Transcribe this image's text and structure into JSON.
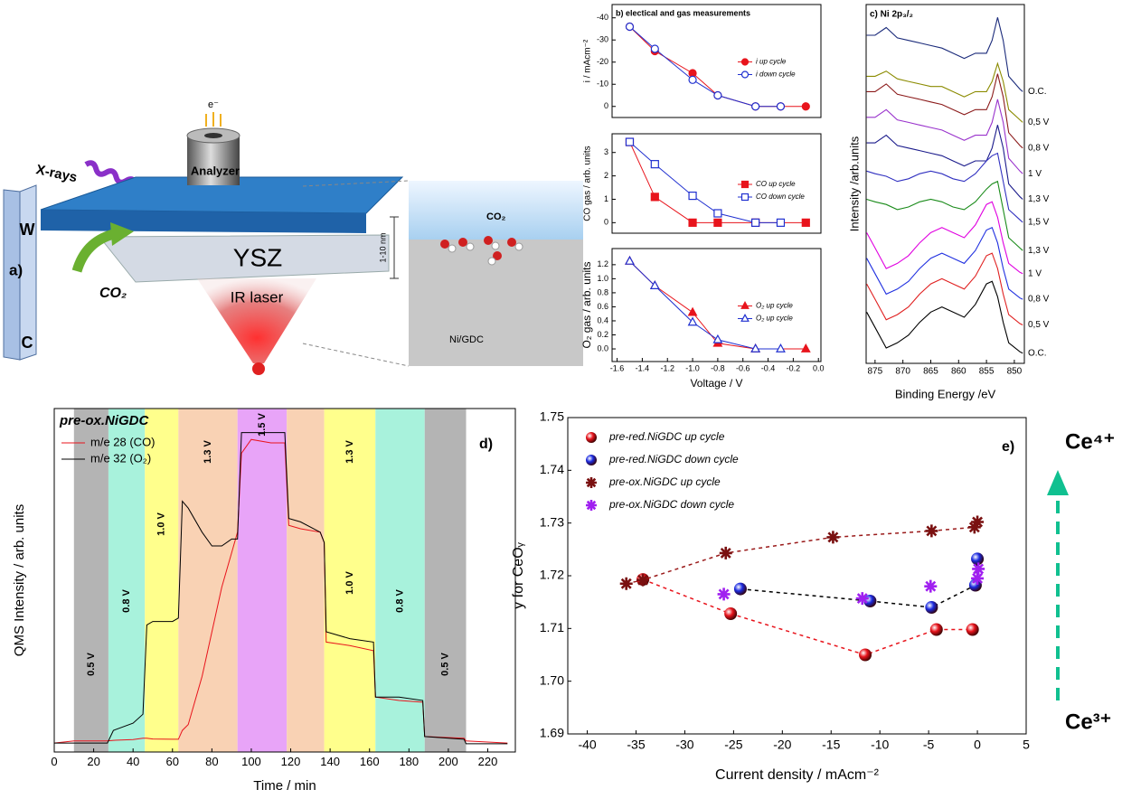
{
  "schematic": {
    "label": "a)",
    "xray": "X-rays",
    "electron": "e⁻",
    "analyzer": "Analyzer",
    "w": "W",
    "c": "C",
    "co2": "CO₂",
    "ysz": "YSZ",
    "laser": "IR laser",
    "scale": "1-10 nm",
    "inset_co2": "CO₂",
    "inset_substrate": "Ni/GDC"
  },
  "chart_data": [
    {
      "type": "line",
      "title": "b) electical and gas measurements",
      "ylabel": "i / mAcm⁻²",
      "xlim": [
        -1.64,
        0.02
      ],
      "ylim": [
        5,
        -46
      ],
      "yticks": [
        -40,
        -30,
        -20,
        -10,
        0
      ],
      "legend": "right",
      "series": [
        {
          "name": "i up cycle",
          "color": "#e8141c",
          "marker": "circle",
          "filled": true,
          "x": [
            -1.5,
            -1.3,
            -1.0,
            -0.8,
            -0.5,
            -0.3,
            -0.1
          ],
          "values": [
            -36,
            -25,
            -15,
            -5,
            0,
            0,
            0
          ]
        },
        {
          "name": "i down cycle",
          "color": "#2030d0",
          "marker": "circle",
          "filled": false,
          "x": [
            -1.5,
            -1.3,
            -1.0,
            -0.8,
            -0.5,
            -0.3
          ],
          "values": [
            -36,
            -26,
            -12,
            -5,
            0,
            0
          ]
        }
      ]
    },
    {
      "type": "line",
      "ylabel": "CO gas / arb. units",
      "xlim": [
        -1.64,
        0.02
      ],
      "ylim": [
        -0.45,
        3.8
      ],
      "yticks": [
        0,
        1,
        2,
        3
      ],
      "legend": "right",
      "series": [
        {
          "name": "CO up cycle",
          "color": "#e8141c",
          "marker": "square",
          "filled": true,
          "x": [
            -1.5,
            -1.3,
            -1.0,
            -0.8,
            -0.5,
            -0.1
          ],
          "values": [
            3.45,
            1.1,
            0,
            0,
            0,
            0
          ]
        },
        {
          "name": "CO down cycle",
          "color": "#2030d0",
          "marker": "square",
          "filled": false,
          "x": [
            -1.5,
            -1.3,
            -1.0,
            -0.8,
            -0.5,
            -0.3
          ],
          "values": [
            3.45,
            2.5,
            1.15,
            0.4,
            0,
            0
          ]
        }
      ]
    },
    {
      "type": "line",
      "ylabel": "O₂ gas / arb. units",
      "xlabel": "Voltage / V",
      "xlim": [
        -1.64,
        0.02
      ],
      "ylim": [
        -0.18,
        1.43
      ],
      "yticks": [
        {
          "value": 0,
          "label": "0.0"
        },
        0.2,
        0.4,
        0.6,
        0.8,
        {
          "value": 1,
          "label": "1.0"
        },
        1.2
      ],
      "xticks": [
        -1.6,
        -1.4,
        -1.2,
        {
          "value": -1,
          "label": "-1.0"
        },
        -0.8,
        -0.6,
        -0.4,
        -0.2,
        {
          "value": 0,
          "label": "0.0"
        }
      ],
      "legend": "right",
      "series": [
        {
          "name": "O₂ up cycle",
          "color": "#e8141c",
          "marker": "triangle",
          "filled": true,
          "x": [
            -1.5,
            -1.3,
            -1.0,
            -0.8,
            -0.5,
            -0.1
          ],
          "values": [
            1.25,
            0.9,
            0.52,
            0.08,
            0,
            0
          ]
        },
        {
          "name": "O₂ up cycle",
          "color": "#2030d0",
          "marker": "triangle",
          "filled": false,
          "x": [
            -1.5,
            -1.3,
            -1.0,
            -0.8,
            -0.5,
            -0.3
          ],
          "values": [
            1.25,
            0.9,
            0.38,
            0.13,
            0,
            0
          ]
        }
      ]
    },
    {
      "type": "line",
      "title": "c) Ni 2p₃/₂",
      "xlabel": "Binding Energy /eV",
      "ylabel": "Intensity /arb.units",
      "xlim": [
        876.6,
        848.2
      ],
      "ylim": [
        0,
        14
      ],
      "xticks": [
        875,
        870,
        865,
        860,
        855,
        850
      ],
      "legend": "line end",
      "x": [
        876.5,
        875,
        873,
        871,
        869,
        867,
        865,
        863,
        861,
        859,
        857,
        855,
        854,
        853,
        852,
        851,
        849,
        848.5
      ],
      "series": [
        {
          "name": "O.C.",
          "color": "#1a2a7a",
          "values": [
            12.8,
            12.8,
            13.1,
            12.7,
            12.6,
            12.5,
            12.4,
            12.3,
            12.1,
            11.9,
            12.1,
            12.1,
            12.6,
            13.5,
            12.6,
            11.2,
            10.7,
            10.6
          ]
        },
        {
          "name": "0,5 V",
          "color": "#8b8b00",
          "values": [
            11.2,
            11.2,
            11.4,
            11.1,
            11.0,
            10.9,
            10.8,
            10.8,
            10.6,
            10.4,
            10.6,
            10.6,
            11.0,
            11.7,
            11.0,
            9.9,
            9.5,
            9.4
          ]
        },
        {
          "name": "0,8 V",
          "color": "#8b1a1a",
          "values": [
            10.6,
            10.6,
            10.9,
            10.5,
            10.4,
            10.3,
            10.2,
            10.1,
            9.9,
            9.7,
            9.9,
            9.9,
            10.4,
            11.3,
            10.4,
            9.0,
            8.5,
            8.4
          ]
        },
        {
          "name": "1 V",
          "color": "#9932cc",
          "values": [
            9.6,
            9.6,
            9.9,
            9.5,
            9.4,
            9.3,
            9.2,
            9.1,
            8.9,
            8.7,
            8.9,
            8.9,
            9.4,
            10.3,
            9.4,
            8.0,
            7.5,
            7.4
          ]
        },
        {
          "name": "1,3 V",
          "color": "#1a1a8b",
          "values": [
            8.6,
            8.6,
            8.9,
            8.5,
            8.4,
            8.3,
            8.2,
            8.1,
            7.9,
            7.7,
            7.9,
            7.9,
            8.4,
            9.3,
            8.4,
            7.0,
            6.5,
            6.4
          ]
        },
        {
          "name": "1,5 V",
          "color": "#3030c0",
          "values": [
            7.5,
            7.4,
            7.3,
            7.1,
            7.2,
            7.4,
            7.5,
            7.4,
            7.2,
            7.1,
            7.4,
            7.9,
            8.1,
            8.2,
            7.1,
            6.0,
            5.6,
            5.5
          ]
        },
        {
          "name": "1,3 V",
          "color": "#1a8b1a",
          "values": [
            6.4,
            6.3,
            6.2,
            6.0,
            6.1,
            6.3,
            6.4,
            6.3,
            6.1,
            6.0,
            6.3,
            6.8,
            7.0,
            7.1,
            6.0,
            4.9,
            4.5,
            4.4
          ]
        },
        {
          "name": "1 V",
          "color": "#e000e0",
          "values": [
            5.1,
            4.5,
            3.7,
            3.9,
            4.2,
            4.7,
            5.1,
            5.3,
            5.1,
            4.9,
            5.4,
            6.2,
            6.3,
            5.7,
            4.7,
            3.9,
            3.55,
            3.5
          ]
        },
        {
          "name": "0,8 V",
          "color": "#2030e0",
          "values": [
            4.1,
            3.5,
            2.7,
            2.9,
            3.2,
            3.7,
            4.1,
            4.3,
            4.1,
            3.9,
            4.4,
            5.2,
            5.3,
            4.7,
            3.7,
            2.9,
            2.55,
            2.5
          ]
        },
        {
          "name": "0,5 V",
          "color": "#e02020",
          "values": [
            3.1,
            2.5,
            1.7,
            1.9,
            2.2,
            2.7,
            3.1,
            3.3,
            3.1,
            2.9,
            3.4,
            4.2,
            4.3,
            3.7,
            2.7,
            1.9,
            1.55,
            1.5
          ]
        },
        {
          "name": "O.C.",
          "color": "#000000",
          "values": [
            2.0,
            1.4,
            0.6,
            0.8,
            1.1,
            1.6,
            2.0,
            2.2,
            2.0,
            1.8,
            2.3,
            3.1,
            3.2,
            2.6,
            1.6,
            0.8,
            0.45,
            0.4
          ]
        }
      ]
    },
    {
      "type": "line",
      "title": "pre-ox.NiGDC",
      "annotations": [
        "d)"
      ],
      "xlabel": "Time / min",
      "ylabel": "QMS Intensity / arb. units",
      "xlim": [
        0,
        234
      ],
      "ylim": [
        0,
        100
      ],
      "xticks": [
        0,
        20,
        40,
        60,
        80,
        100,
        120,
        140,
        160,
        180,
        200,
        220
      ],
      "legend": "upper left",
      "bands": [
        {
          "start": 10,
          "end": 27.5,
          "color": "#b4b4b4",
          "labels": [
            "0.5 V"
          ]
        },
        {
          "start": 27.5,
          "end": 46,
          "color": "#a8f2dc",
          "labels": [
            "0.8 V"
          ]
        },
        {
          "start": 46,
          "end": 63,
          "color": "#ffff8c",
          "labels": [
            "1.0 V"
          ]
        },
        {
          "start": 63,
          "end": 93,
          "color": "#f9d2b4",
          "labels": [
            "1.3 V"
          ]
        },
        {
          "start": 93,
          "end": 118,
          "color": "#e8a4f8",
          "labels": [
            "1.5 V"
          ]
        },
        {
          "start": 118,
          "end": 137,
          "color": "#f9d2b4"
        },
        {
          "start": 137,
          "end": 163,
          "color": "#ffff8c",
          "labels": [
            "1.3 V",
            "1.0 V"
          ]
        },
        {
          "start": 163,
          "end": 188,
          "color": "#a8f2dc",
          "labels": [
            "0.8 V"
          ]
        },
        {
          "start": 188,
          "end": 209,
          "color": "#b4b4b4",
          "labels": [
            "0.5 V"
          ]
        }
      ],
      "x": [
        0,
        10,
        27,
        30,
        40,
        45,
        47,
        50,
        60,
        63,
        65,
        68,
        75,
        80,
        85,
        90,
        93,
        95,
        100,
        110,
        117,
        119,
        125,
        135,
        137,
        138,
        150,
        162,
        163,
        175,
        187,
        188,
        208,
        209,
        230
      ],
      "series": [
        {
          "name": "m/e 28 (CO)",
          "color": "#e8141c",
          "values": [
            2.6,
            3.2,
            3.2,
            3.4,
            3.6,
            4,
            4,
            3.8,
            3.7,
            3.7,
            6.3,
            8,
            22,
            35,
            48,
            58,
            64,
            87,
            91,
            90,
            90,
            66,
            65,
            64,
            61,
            32,
            31,
            29.5,
            16,
            15,
            14.5,
            4.5,
            4,
            3.2,
            2.6
          ]
        },
        {
          "name": "m/e 32 (O₂)",
          "color": "#000000",
          "values": [
            2.6,
            2.6,
            2.6,
            6.3,
            8.4,
            11,
            37,
            38,
            38,
            39,
            73,
            71,
            64,
            60,
            60,
            62,
            62,
            93,
            93,
            93,
            93,
            68,
            67,
            64,
            61,
            35,
            33,
            32,
            16,
            16,
            15,
            4.5,
            3.7,
            2.4,
            2.4
          ]
        }
      ]
    },
    {
      "type": "scatter",
      "annotations": [
        "e)",
        "Ce⁴⁺",
        "Ce³⁺"
      ],
      "xlabel": "Current density / mAcm⁻²",
      "ylabel": "y for CeOᵧ",
      "xlim": [
        -42,
        5
      ],
      "ylim": [
        1.69,
        1.75
      ],
      "xticks": [
        -40,
        -35,
        -30,
        -25,
        -20,
        -15,
        -10,
        -5,
        0,
        5
      ],
      "yticks": [
        1.69,
        {
          "value": 1.7,
          "label": "1.70"
        },
        1.71,
        1.72,
        1.73,
        1.74,
        1.75
      ],
      "legend": "upper left",
      "series": [
        {
          "name": "pre-red.NiGDC up cycle",
          "color": "#e8141c",
          "marker": "sphere",
          "line": "dashed",
          "line_color": "#e8141c",
          "x": [
            -34.3,
            -25.3,
            -11.5,
            -4.2,
            -0.5
          ],
          "values": [
            1.7193,
            1.7128,
            1.705,
            1.7098,
            1.7098
          ]
        },
        {
          "name": "pre-red.NiGDC down cycle",
          "color": "#1a2ae0",
          "marker": "sphere",
          "line": "dashed",
          "line_color": "#000000",
          "x": [
            -24.3,
            -11,
            -4.7,
            -0.2,
            0
          ],
          "values": [
            1.7175,
            1.7152,
            1.714,
            1.7182,
            1.7232
          ]
        },
        {
          "name": "pre-ox.NiGDC up cycle",
          "color": "#7a1010",
          "marker": "star",
          "line": "dashed",
          "line_color": "#9a1a1a",
          "x": [
            -36,
            -34.3,
            -25.8,
            -14.8,
            -4.7,
            -0.3,
            0
          ],
          "values": [
            1.7185,
            1.7192,
            1.7243,
            1.7273,
            1.7285,
            1.7292,
            1.7302
          ]
        },
        {
          "name": "pre-ox.NiGDC down cycle",
          "color": "#a020f0",
          "marker": "star",
          "x": [
            -26,
            -11.8,
            -4.8,
            0,
            0.1
          ],
          "values": [
            1.7165,
            1.7157,
            1.718,
            1.7195,
            1.7213
          ]
        }
      ]
    }
  ]
}
